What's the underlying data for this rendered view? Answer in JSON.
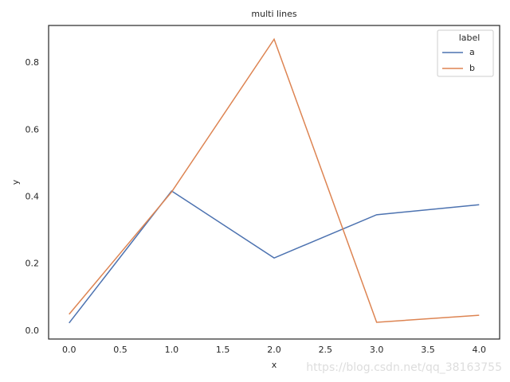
{
  "chart_data": {
    "type": "line",
    "title": "multi lines",
    "xlabel": "x",
    "ylabel": "y",
    "x": [
      0,
      1,
      2,
      3,
      4
    ],
    "series": [
      {
        "name": "a",
        "color": "#4c72b0",
        "values": [
          0.024,
          0.418,
          0.218,
          0.347,
          0.377
        ]
      },
      {
        "name": "b",
        "color": "#dd8452",
        "values": [
          0.05,
          0.415,
          0.871,
          0.026,
          0.047
        ]
      }
    ],
    "legend_title": "label",
    "legend_position": "upper-right",
    "xlim": [
      -0.2,
      4.2
    ],
    "xticks": [
      {
        "value": 0,
        "label": "0.0"
      },
      0.5,
      {
        "value": 1,
        "label": "1.0"
      },
      1.5,
      {
        "value": 2,
        "label": "2.0"
      },
      2.5,
      {
        "value": 3,
        "label": "3.0"
      },
      3.5,
      {
        "value": 4,
        "label": "4.0"
      }
    ],
    "ylim": [
      -0.024,
      0.912
    ],
    "yticks": [
      {
        "value": 0,
        "label": "0.0"
      },
      0.2,
      0.4,
      0.6,
      0.8
    ],
    "grid": false,
    "watermark": "https://blog.csdn.net/qq_38163755"
  }
}
